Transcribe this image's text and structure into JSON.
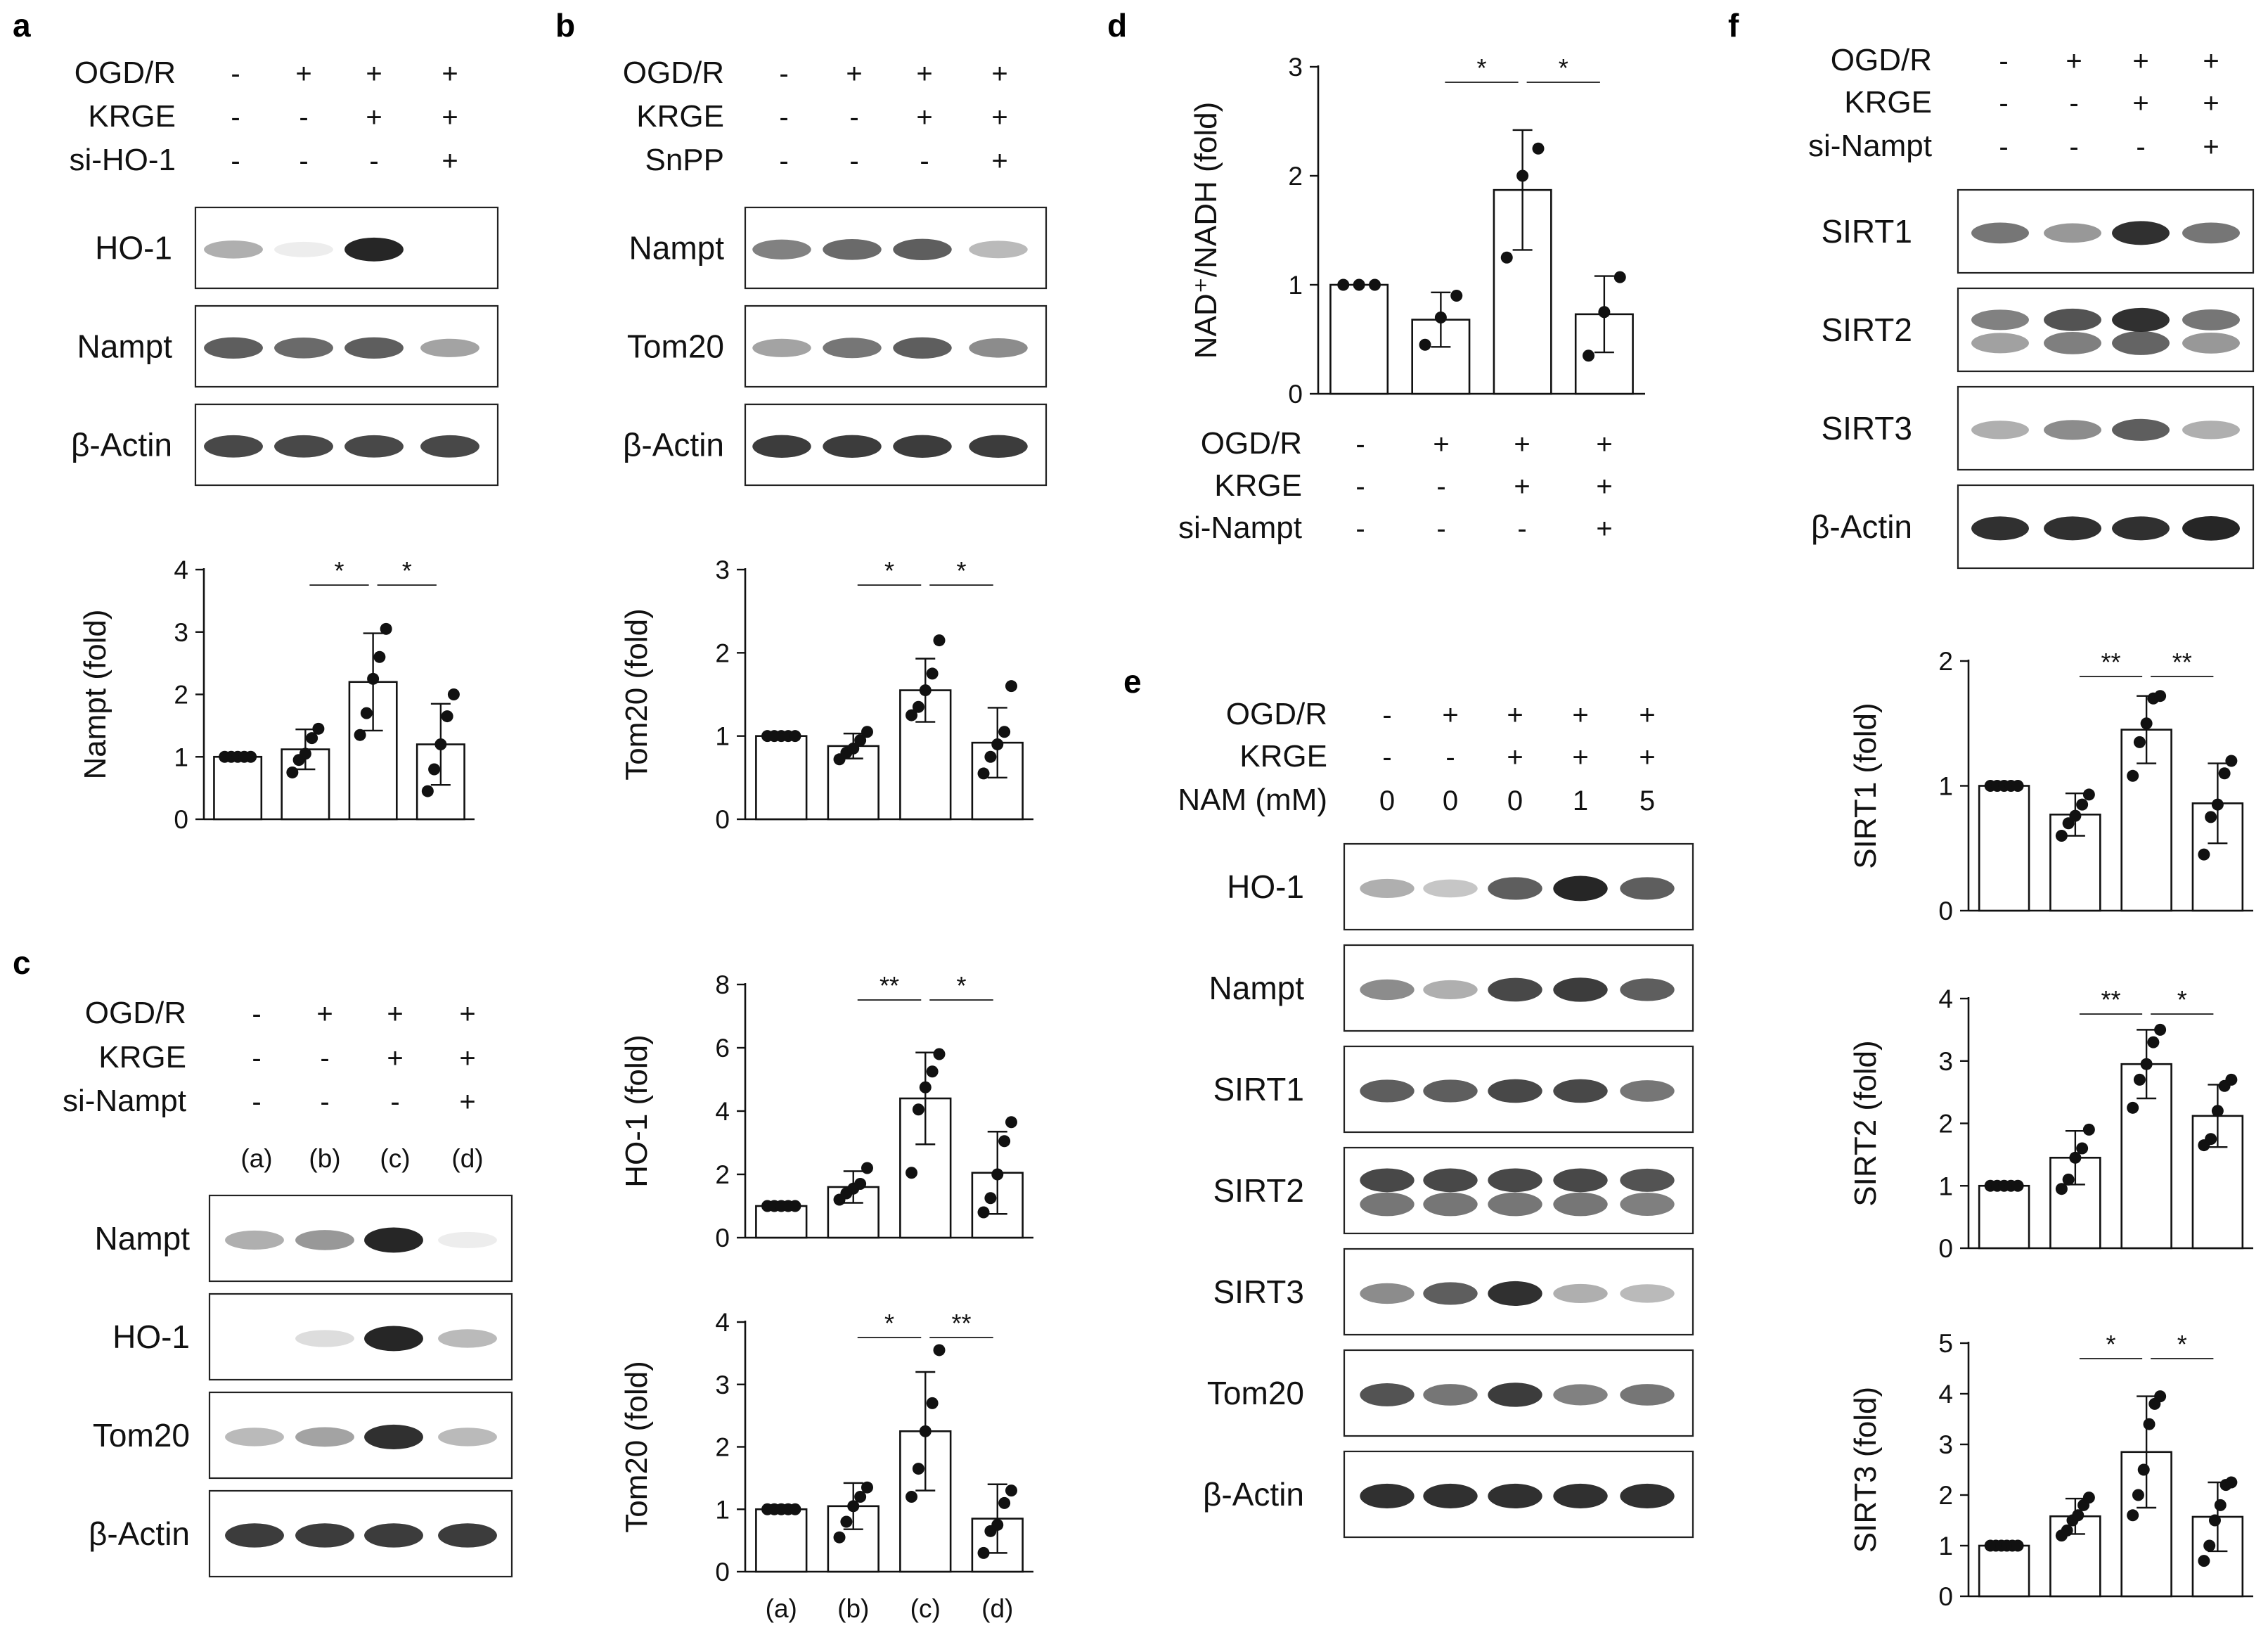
{
  "panel_letters": {
    "a": "a",
    "b": "b",
    "c": "c",
    "d": "d",
    "e": "e",
    "f": "f"
  },
  "symbols": {
    "plus": "+",
    "minus": "-",
    "star1": "*",
    "star2": "**"
  },
  "panel_a": {
    "conditions": [
      {
        "label": "OGD/R",
        "values": [
          "-",
          "+",
          "+",
          "+"
        ]
      },
      {
        "label": "KRGE",
        "values": [
          "-",
          "-",
          "+",
          "+"
        ]
      },
      {
        "label": "si-HO-1",
        "values": [
          "-",
          "-",
          "-",
          "+"
        ]
      }
    ],
    "blots": [
      {
        "label": "HO-1",
        "bands": [
          0.35,
          0.08,
          0.95,
          0.0
        ]
      },
      {
        "label": "Nampt",
        "bands": [
          0.7,
          0.65,
          0.7,
          0.4
        ]
      },
      {
        "label": "β-Actin",
        "bands": [
          0.8,
          0.8,
          0.8,
          0.8
        ]
      }
    ]
  },
  "panel_b": {
    "conditions": [
      {
        "label": "OGD/R",
        "values": [
          "-",
          "+",
          "+",
          "+"
        ]
      },
      {
        "label": "KRGE",
        "values": [
          "-",
          "-",
          "+",
          "+"
        ]
      },
      {
        "label": "SnPP",
        "values": [
          "-",
          "-",
          "-",
          "+"
        ]
      }
    ],
    "blots": [
      {
        "label": "Nampt",
        "bands": [
          0.55,
          0.65,
          0.7,
          0.3
        ]
      },
      {
        "label": "Tom20",
        "bands": [
          0.4,
          0.6,
          0.7,
          0.5
        ]
      },
      {
        "label": "β-Actin",
        "bands": [
          0.85,
          0.85,
          0.85,
          0.85
        ]
      }
    ]
  },
  "panel_c": {
    "conditions": [
      {
        "label": "OGD/R",
        "values": [
          "-",
          "+",
          "+",
          "+"
        ]
      },
      {
        "label": "KRGE",
        "values": [
          "-",
          "-",
          "+",
          "+"
        ]
      },
      {
        "label": "si-Nampt",
        "values": [
          "-",
          "-",
          "-",
          "+"
        ]
      }
    ],
    "lanes": [
      "(a)",
      "(b)",
      "(c)",
      "(d)"
    ],
    "blots": [
      {
        "label": "Nampt",
        "bands": [
          0.35,
          0.45,
          0.95,
          0.08
        ]
      },
      {
        "label": "HO-1",
        "bands": [
          0.0,
          0.15,
          0.95,
          0.3
        ]
      },
      {
        "label": "Tom20",
        "bands": [
          0.3,
          0.4,
          0.9,
          0.3
        ]
      },
      {
        "label": "β-Actin",
        "bands": [
          0.85,
          0.85,
          0.85,
          0.85
        ]
      }
    ]
  },
  "panel_d": {
    "conditions": [
      {
        "label": "OGD/R",
        "values": [
          "-",
          "+",
          "+",
          "+"
        ]
      },
      {
        "label": "KRGE",
        "values": [
          "-",
          "-",
          "+",
          "+"
        ]
      },
      {
        "label": "si-Nampt",
        "values": [
          "-",
          "-",
          "-",
          "+"
        ]
      }
    ]
  },
  "panel_e": {
    "conditions": [
      {
        "label": "OGD/R",
        "values": [
          "-",
          "+",
          "+",
          "+",
          "+"
        ]
      },
      {
        "label": "KRGE",
        "values": [
          "-",
          "-",
          "+",
          "+",
          "+"
        ]
      },
      {
        "label": "NAM (mM)",
        "values": [
          "0",
          "0",
          "0",
          "1",
          "5"
        ]
      }
    ],
    "blots": [
      {
        "label": "HO-1",
        "bands": [
          0.35,
          0.25,
          0.7,
          0.95,
          0.7
        ]
      },
      {
        "label": "Nampt",
        "bands": [
          0.5,
          0.35,
          0.8,
          0.85,
          0.7
        ]
      },
      {
        "label": "SIRT1",
        "bands": [
          0.7,
          0.7,
          0.8,
          0.8,
          0.6
        ]
      },
      {
        "label": "SIRT2",
        "bands": [
          0.8,
          0.8,
          0.8,
          0.8,
          0.75
        ]
      },
      {
        "label": "SIRT3",
        "bands": [
          0.5,
          0.7,
          0.9,
          0.35,
          0.3
        ]
      },
      {
        "label": "Tom20",
        "bands": [
          0.75,
          0.6,
          0.85,
          0.55,
          0.6
        ]
      },
      {
        "label": "β-Actin",
        "bands": [
          0.9,
          0.9,
          0.9,
          0.9,
          0.9
        ]
      }
    ]
  },
  "panel_f": {
    "conditions": [
      {
        "label": "OGD/R",
        "values": [
          "-",
          "+",
          "+",
          "+"
        ]
      },
      {
        "label": "KRGE",
        "values": [
          "-",
          "-",
          "+",
          "+"
        ]
      },
      {
        "label": "si-Nampt",
        "values": [
          "-",
          "-",
          "-",
          "+"
        ]
      }
    ],
    "blots": [
      {
        "label": "SIRT1",
        "bands": [
          0.6,
          0.45,
          0.9,
          0.6
        ]
      },
      {
        "label": "SIRT2",
        "bands": [
          0.55,
          0.75,
          0.9,
          0.6
        ]
      },
      {
        "label": "SIRT3",
        "bands": [
          0.35,
          0.5,
          0.7,
          0.35
        ]
      },
      {
        "label": "β-Actin",
        "bands": [
          0.9,
          0.9,
          0.9,
          0.95
        ]
      }
    ]
  },
  "chart_data": [
    {
      "id": "a_nampt",
      "type": "bar",
      "ylabel": "Nampt (fold)",
      "ylim": [
        0,
        4
      ],
      "yticks": [
        0,
        1,
        2,
        3,
        4
      ],
      "values": [
        1.0,
        1.12,
        2.2,
        1.2
      ],
      "errors": [
        0,
        0.32,
        0.78,
        0.65
      ],
      "points": [
        [
          1,
          1,
          1,
          1,
          1
        ],
        [
          0.75,
          0.95,
          1.05,
          1.3,
          1.45
        ],
        [
          1.35,
          1.7,
          2.25,
          2.6,
          3.05
        ],
        [
          0.45,
          0.8,
          1.2,
          1.65,
          2.0
        ]
      ],
      "significance": [
        {
          "pair": [
            1,
            2
          ],
          "label": "*"
        },
        {
          "pair": [
            2,
            3
          ],
          "label": "*"
        }
      ]
    },
    {
      "id": "b_tom20",
      "type": "bar",
      "ylabel": "Tom20 (fold)",
      "ylim": [
        0,
        3
      ],
      "yticks": [
        0,
        1,
        2,
        3
      ],
      "values": [
        1.0,
        0.88,
        1.55,
        0.92
      ],
      "errors": [
        0,
        0.15,
        0.38,
        0.42
      ],
      "points": [
        [
          1,
          1,
          1,
          1,
          1
        ],
        [
          0.72,
          0.8,
          0.85,
          0.95,
          1.05
        ],
        [
          1.25,
          1.35,
          1.55,
          1.75,
          2.15
        ],
        [
          0.55,
          0.75,
          0.9,
          1.05,
          1.6
        ]
      ],
      "significance": [
        {
          "pair": [
            1,
            2
          ],
          "label": "*"
        },
        {
          "pair": [
            2,
            3
          ],
          "label": "*"
        }
      ]
    },
    {
      "id": "c_ho1",
      "type": "bar",
      "ylabel": "HO-1 (fold)",
      "ylim": [
        0,
        8
      ],
      "yticks": [
        0,
        2,
        4,
        6,
        8
      ],
      "values": [
        1.0,
        1.6,
        4.4,
        2.05
      ],
      "errors": [
        0,
        0.5,
        1.45,
        1.3
      ],
      "points": [
        [
          1,
          1,
          1,
          1,
          1
        ],
        [
          1.2,
          1.4,
          1.55,
          1.7,
          2.2
        ],
        [
          2.05,
          4.05,
          4.75,
          5.25,
          5.8
        ],
        [
          0.8,
          1.25,
          2.0,
          3.05,
          3.65
        ]
      ],
      "significance": [
        {
          "pair": [
            1,
            2
          ],
          "label": "**"
        },
        {
          "pair": [
            2,
            3
          ],
          "label": "*"
        }
      ]
    },
    {
      "id": "c_tom20",
      "type": "bar",
      "ylabel": "Tom20 (fold)",
      "ylim": [
        0,
        4
      ],
      "yticks": [
        0,
        1,
        2,
        3,
        4
      ],
      "categories": [
        "(a)",
        "(b)",
        "(c)",
        "(d)"
      ],
      "values": [
        1.0,
        1.05,
        2.25,
        0.85
      ],
      "errors": [
        0,
        0.37,
        0.95,
        0.55
      ],
      "points": [
        [
          1,
          1,
          1,
          1,
          1
        ],
        [
          0.55,
          0.8,
          1.05,
          1.2,
          1.35
        ],
        [
          1.2,
          1.65,
          2.25,
          2.7,
          3.55
        ],
        [
          0.3,
          0.65,
          0.75,
          1.1,
          1.3
        ]
      ],
      "significance": [
        {
          "pair": [
            1,
            2
          ],
          "label": "*"
        },
        {
          "pair": [
            2,
            3
          ],
          "label": "**"
        }
      ]
    },
    {
      "id": "d_nad",
      "type": "bar",
      "ylabel": "NAD⁺/NADH (fold)",
      "ylim": [
        0,
        3
      ],
      "yticks": [
        0,
        1,
        2,
        3
      ],
      "values": [
        1.0,
        0.68,
        1.87,
        0.73
      ],
      "errors": [
        0,
        0.25,
        0.55,
        0.35
      ],
      "points": [
        [
          1,
          1,
          1
        ],
        [
          0.45,
          0.7,
          0.9
        ],
        [
          1.25,
          2.0,
          2.25
        ],
        [
          0.35,
          0.75,
          1.07
        ]
      ],
      "significance": [
        {
          "pair": [
            1,
            2
          ],
          "label": "*"
        },
        {
          "pair": [
            2,
            3
          ],
          "label": "*"
        }
      ]
    },
    {
      "id": "f_sirt1",
      "type": "bar",
      "ylabel": "SIRT1 (fold)",
      "ylim": [
        0,
        2
      ],
      "yticks": [
        0,
        1,
        2
      ],
      "values": [
        1.0,
        0.77,
        1.45,
        0.86
      ],
      "errors": [
        0,
        0.17,
        0.27,
        0.32
      ],
      "points": [
        [
          1,
          1,
          1,
          1,
          1
        ],
        [
          0.6,
          0.7,
          0.76,
          0.85,
          0.93
        ],
        [
          1.08,
          1.35,
          1.5,
          1.7,
          1.72
        ],
        [
          0.45,
          0.75,
          0.85,
          1.1,
          1.2
        ]
      ],
      "significance": [
        {
          "pair": [
            1,
            2
          ],
          "label": "**"
        },
        {
          "pair": [
            2,
            3
          ],
          "label": "**"
        }
      ]
    },
    {
      "id": "f_sirt2",
      "type": "bar",
      "ylabel": "SIRT2 (fold)",
      "ylim": [
        0,
        4
      ],
      "yticks": [
        0,
        1,
        2,
        3,
        4
      ],
      "values": [
        1.0,
        1.45,
        2.95,
        2.12
      ],
      "errors": [
        0,
        0.43,
        0.55,
        0.5
      ],
      "points": [
        [
          1,
          1,
          1,
          1,
          1
        ],
        [
          0.95,
          1.1,
          1.45,
          1.6,
          1.9
        ],
        [
          2.25,
          2.7,
          2.95,
          3.3,
          3.5
        ],
        [
          1.65,
          1.75,
          2.2,
          2.6,
          2.7
        ]
      ],
      "significance": [
        {
          "pair": [
            1,
            2
          ],
          "label": "**"
        },
        {
          "pair": [
            2,
            3
          ],
          "label": "*"
        }
      ]
    },
    {
      "id": "f_sirt3",
      "type": "bar",
      "ylabel": "SIRT3 (fold)",
      "ylim": [
        0,
        5
      ],
      "yticks": [
        0,
        1,
        2,
        3,
        4,
        5
      ],
      "values": [
        1.0,
        1.58,
        2.85,
        1.57
      ],
      "errors": [
        0,
        0.35,
        1.1,
        0.68
      ],
      "points": [
        [
          1,
          1,
          1,
          1,
          1,
          1
        ],
        [
          1.2,
          1.3,
          1.5,
          1.6,
          1.8,
          1.95
        ],
        [
          1.6,
          2.0,
          2.5,
          3.4,
          3.8,
          3.95
        ],
        [
          0.7,
          1.0,
          1.5,
          1.8,
          2.2,
          2.25
        ]
      ],
      "significance": [
        {
          "pair": [
            1,
            2
          ],
          "label": "*"
        },
        {
          "pair": [
            2,
            3
          ],
          "label": "*"
        }
      ]
    }
  ]
}
